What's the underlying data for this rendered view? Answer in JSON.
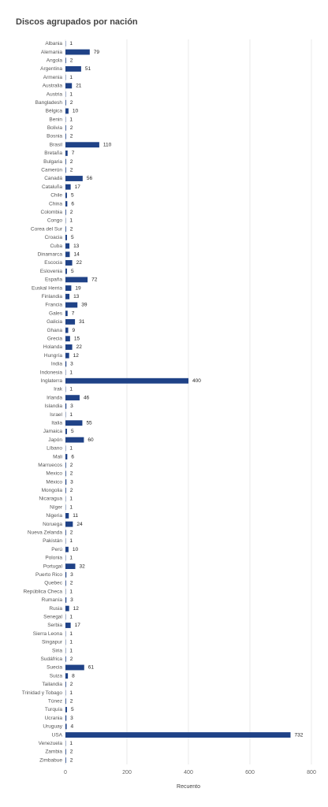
{
  "chart_data": {
    "type": "bar",
    "orientation": "horizontal",
    "title": "Discos agrupados por nación",
    "x_label": "Recuento",
    "categories": [
      "Albania",
      "Alemania",
      "Angola",
      "Argentina",
      "Armenia",
      "Australia",
      "Austria",
      "Bangladesh",
      "Bélgica",
      "Benin",
      "Bolivia",
      "Bosnia",
      "Brasil",
      "Bretaña",
      "Bulgaria",
      "Camerún",
      "Canadá",
      "Cataluña",
      "Chile",
      "China",
      "Colombia",
      "Congo",
      "Corea del Sur",
      "Croacia",
      "Cuba",
      "Dinamarca",
      "Escocia",
      "Eslovenia",
      "España",
      "Euskal Herria",
      "Finlandia",
      "Francia",
      "Gales",
      "Galicia",
      "Ghana",
      "Grecia",
      "Holanda",
      "Hungría",
      "India",
      "Indonesia",
      "Inglaterra",
      "Irak",
      "Irlanda",
      "Islandia",
      "Israel",
      "Italia",
      "Jamaica",
      "Japón",
      "Líbano",
      "Mali",
      "Marruecos",
      "Mexico",
      "México",
      "Mongolia",
      "Nicaragua",
      "Níger",
      "Nigeria",
      "Noruega",
      "Nueva Zelanda",
      "Pakistán",
      "Perú",
      "Polonia",
      "Portugal",
      "Puerto Rico",
      "Quebec",
      "República Checa",
      "Rumanía",
      "Rusia",
      "Senegal",
      "Serbia",
      "Sierra Leona",
      "Singapur",
      "Siria",
      "Sudáfrica",
      "Suecia",
      "Suiza",
      "Tailandia",
      "Trinidad y Tobago",
      "Túnez",
      "Turquía",
      "Ucrania",
      "Uruguay",
      "USA",
      "Venezuela",
      "Zambia",
      "Zimbabue"
    ],
    "values": [
      1,
      79,
      2,
      51,
      1,
      21,
      1,
      2,
      10,
      1,
      2,
      2,
      110,
      7,
      2,
      2,
      56,
      17,
      5,
      6,
      2,
      1,
      2,
      5,
      13,
      14,
      22,
      5,
      72,
      19,
      13,
      39,
      7,
      31,
      9,
      15,
      22,
      12,
      3,
      1,
      400,
      1,
      46,
      3,
      1,
      55,
      5,
      60,
      1,
      6,
      2,
      2,
      3,
      2,
      1,
      1,
      11,
      24,
      2,
      1,
      10,
      1,
      32,
      3,
      2,
      1,
      3,
      12,
      1,
      17,
      1,
      1,
      1,
      2,
      61,
      8,
      2,
      1,
      2,
      5,
      3,
      4,
      732,
      1,
      2,
      2
    ],
    "color": "#1f4287",
    "xlim": [
      0,
      800
    ],
    "xticks": [
      0,
      200,
      400,
      600,
      800
    ],
    "grid": true
  }
}
